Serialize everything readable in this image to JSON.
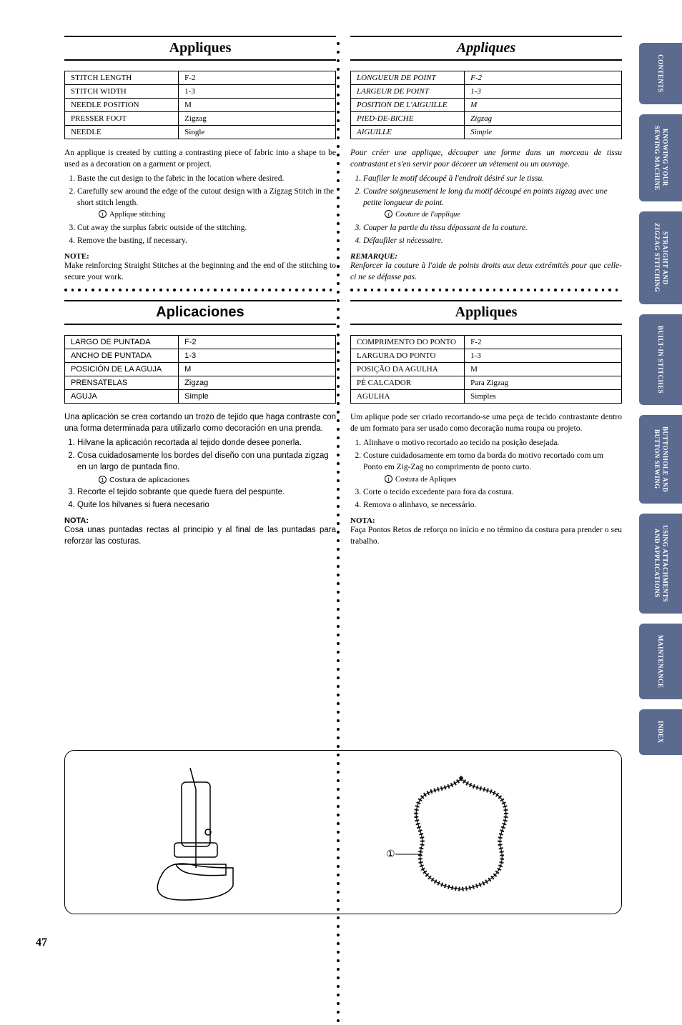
{
  "sidebar": {
    "tabs": [
      "CONTENTS",
      "KNOWING YOUR\nSEWING MACHINE",
      "STRAIGHT AND\nZIGZAG STITCHING",
      "BUILT-IN STITCHES",
      "BUTTONHOLE AND\nBUTTON SEWING",
      "USING ATTACHMENTS\nAND APPLICATIONS",
      "MAINTENANCE",
      "INDEX"
    ],
    "bg": "#5b6a8f"
  },
  "page_number": "47",
  "sections": {
    "en": {
      "title": "Appliques",
      "title_italic": false,
      "table": [
        [
          "STITCH LENGTH",
          "F-2"
        ],
        [
          "STITCH WIDTH",
          "1-3"
        ],
        [
          "NEEDLE POSITION",
          "M"
        ],
        [
          "PRESSER FOOT",
          "Zigzag"
        ],
        [
          "NEEDLE",
          "Single"
        ]
      ],
      "intro": "An applique is created by cutting a contrasting piece of fabric into a shape to be used as a decoration on a garment or project.",
      "steps": [
        "Baste the cut design to the fabric in the location where desired.",
        "Carefully sew around the edge of the cutout design with a Zigzag Stitch in the short stitch length.",
        "Cut away the surplus fabric outside of the stitching.",
        "Remove the basting, if necessary."
      ],
      "step_sub": "Applique stitching",
      "note_label": "NOTE:",
      "note": "Make reinforcing Straight Stitches at the beginning and the end of the stitching to secure your work."
    },
    "fr": {
      "title": "Appliques",
      "title_italic": true,
      "table": [
        [
          "LONGUEUR DE POINT",
          "F-2"
        ],
        [
          "LARGEUR DE POINT",
          "1-3"
        ],
        [
          "POSITION DE L'AIGUILLE",
          "M"
        ],
        [
          "PIED-DE-BICHE",
          "Zigzag"
        ],
        [
          "AIGUILLE",
          "Simple"
        ]
      ],
      "intro": "Pour créer une applique, découper une forme dans un morceau de tissu contrastant et s'en servir pour décorer un vêtement ou un ouvrage.",
      "steps": [
        "Faufiler le motif découpé à l'endroit désiré sur le tissu.",
        "Coudre soigneusement le long du motif découpé en points zigzag avec une petite longueur de point.",
        "Couper la partie du tissu dépassant de la couture.",
        "Défaufiler si nécessaire."
      ],
      "step_sub": "Couture de l'applique",
      "note_label": "REMARQUE:",
      "note": "Renforcer la couture à l'aide de points droits aux deux extrémités pour que celle-ci ne se défasse pas."
    },
    "es": {
      "title": "Aplicaciones",
      "title_italic": false,
      "sans": true,
      "table": [
        [
          "LARGO DE PUNTADA",
          "F-2"
        ],
        [
          "ANCHO DE PUNTADA",
          "1-3"
        ],
        [
          "POSICIÓN DE LA AGUJA",
          "M"
        ],
        [
          "PRENSATELAS",
          "Zigzag"
        ],
        [
          "AGUJA",
          "Simple"
        ]
      ],
      "intro": "Una aplicación se crea cortando un trozo de tejido que haga contraste con una forma determinada para utilizarlo como decoración en una prenda.",
      "steps": [
        "Hilvane la aplicación recortada al tejido donde desee ponerla.",
        "Cosa cuidadosamente los bordes del diseño con una puntada zigzag en un largo de puntada fino.",
        "Recorte el tejido sobrante que quede fuera del pespunte.",
        "Quite los hilvanes si fuera necesario"
      ],
      "step_sub": "Costura de aplicaciones",
      "note_label": "NOTA:",
      "note": "Cosa unas puntadas rectas al principio y al final de las puntadas para reforzar las costuras."
    },
    "pt": {
      "title": "Appliques",
      "title_italic": false,
      "table": [
        [
          "COMPRIMENTO DO PONTO",
          "F-2"
        ],
        [
          "LARGURA DO PONTO",
          "1-3"
        ],
        [
          "POSIÇÃO DA AGULHA",
          "M"
        ],
        [
          "PÉ CALCADOR",
          "Para Zigzag"
        ],
        [
          "AGULHA",
          "Simples"
        ]
      ],
      "intro": "Um aplique pode ser criado recortando-se uma peça de tecido contrastante dentro de um formato para ser usado como decoração numa roupa ou projeto.",
      "steps": [
        "Alinhave o motivo recortado ao tecido na posição desejada.",
        "Costure cuidadosamente em torno da borda do motivo recortado com um Ponto em Zig-Zag no comprimento de ponto curto.",
        "Corte o tecido excedente para fora da costura.",
        "Remova o alinhavo, se necessário."
      ],
      "step_sub": "Costura de Apliques",
      "note_label": "NOTA:",
      "note": "Faça Pontos Retos de reforço no início e no término da costura para prender o seu trabalho."
    }
  },
  "illustration_label": "1"
}
